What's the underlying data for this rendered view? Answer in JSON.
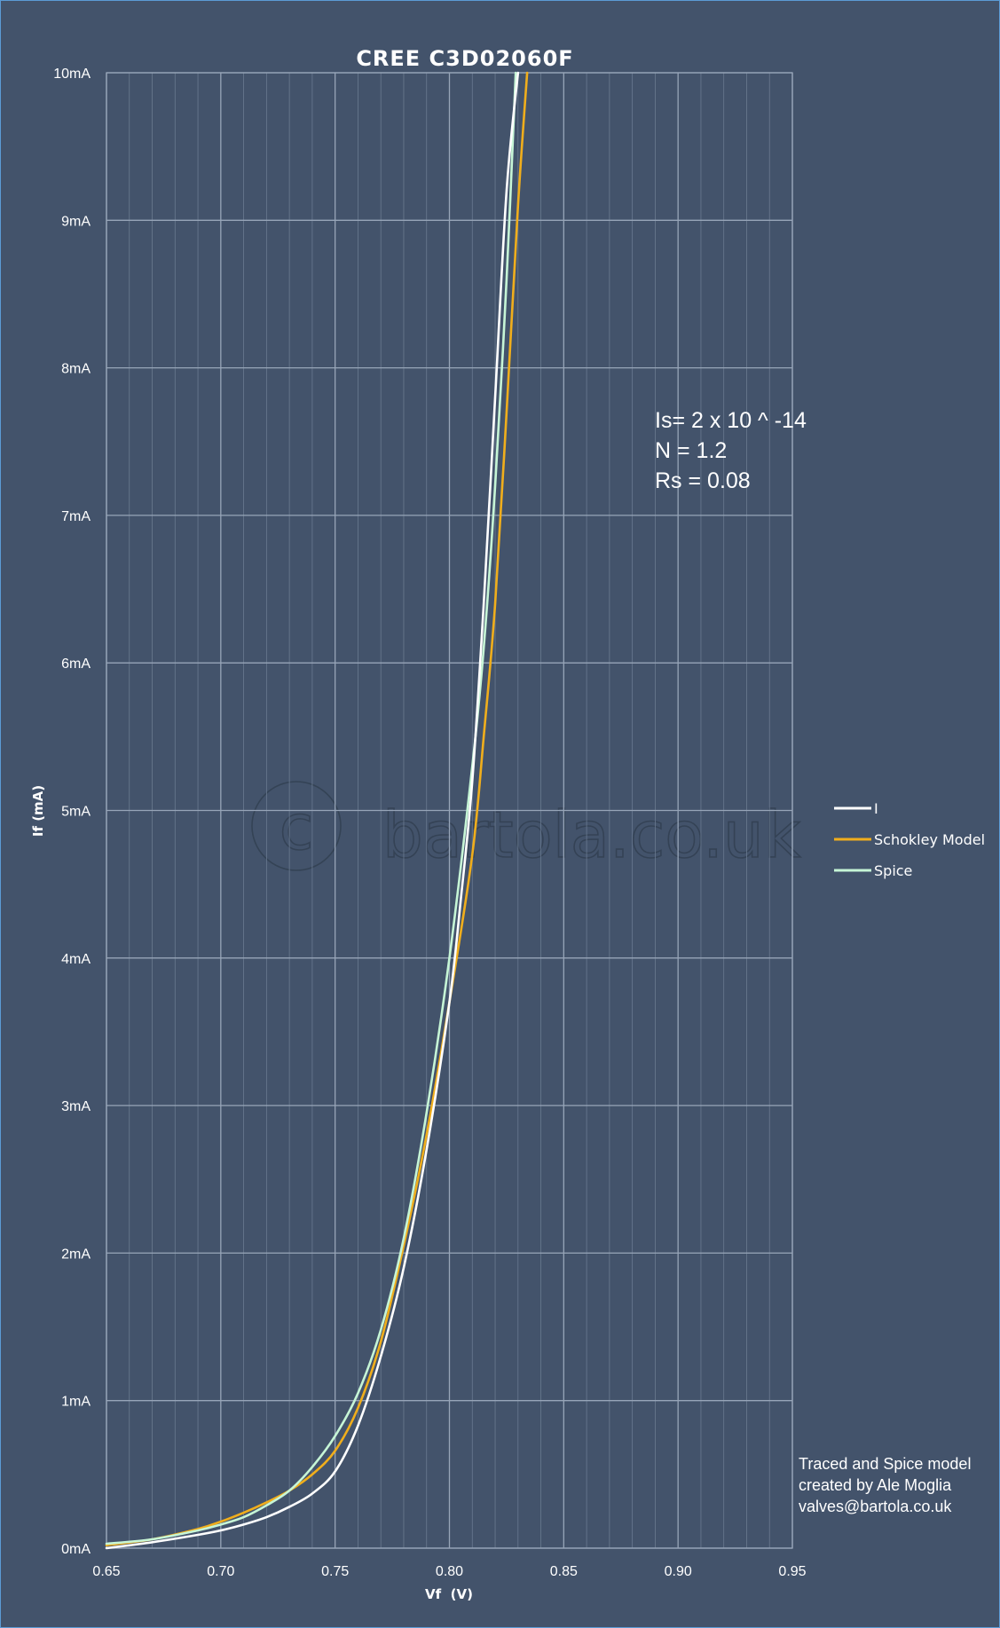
{
  "chart_data": {
    "type": "line",
    "title": "CREE C3D02060F",
    "xlabel": "Vf  (V)",
    "ylabel": "If (mA)",
    "xlim": [
      0.65,
      0.95
    ],
    "ylim": [
      0,
      10
    ],
    "x_ticks": [
      "0.65",
      "0.70",
      "0.75",
      "0.80",
      "0.85",
      "0.90",
      "0.95"
    ],
    "y_ticks": [
      "0mA",
      "1mA",
      "2mA",
      "3mA",
      "4mA",
      "5mA",
      "6mA",
      "7mA",
      "8mA",
      "9mA",
      "10mA"
    ],
    "grid": true,
    "legend_position": "right",
    "series": [
      {
        "name": "I",
        "color": "#ffffff",
        "x": [
          0.65,
          0.67,
          0.69,
          0.7,
          0.71,
          0.72,
          0.73,
          0.74,
          0.75,
          0.76,
          0.77,
          0.78,
          0.79,
          0.8,
          0.805,
          0.81,
          0.815,
          0.82,
          0.825,
          0.83
        ],
        "y": [
          0.0,
          0.04,
          0.09,
          0.12,
          0.16,
          0.21,
          0.28,
          0.37,
          0.52,
          0.83,
          1.3,
          1.9,
          2.7,
          3.7,
          4.4,
          5.2,
          6.4,
          7.8,
          9.2,
          10.0
        ]
      },
      {
        "name": "Schokley Model",
        "color": "#f0ae1c",
        "x": [
          0.65,
          0.67,
          0.69,
          0.7,
          0.71,
          0.72,
          0.73,
          0.74,
          0.75,
          0.76,
          0.77,
          0.78,
          0.79,
          0.8,
          0.81,
          0.815,
          0.82,
          0.825,
          0.83,
          0.834
        ],
        "y": [
          0.02,
          0.06,
          0.13,
          0.18,
          0.24,
          0.31,
          0.39,
          0.5,
          0.66,
          0.95,
          1.4,
          2.05,
          2.8,
          3.7,
          4.7,
          5.5,
          6.4,
          7.7,
          9.1,
          10.0
        ]
      },
      {
        "name": "Spice",
        "color": "#c6f5d6",
        "x": [
          0.65,
          0.67,
          0.69,
          0.7,
          0.71,
          0.72,
          0.73,
          0.74,
          0.75,
          0.76,
          0.77,
          0.78,
          0.79,
          0.8,
          0.81,
          0.815,
          0.82,
          0.825,
          0.829
        ],
        "y": [
          0.03,
          0.06,
          0.12,
          0.16,
          0.21,
          0.29,
          0.39,
          0.55,
          0.76,
          1.05,
          1.48,
          2.1,
          2.95,
          4.0,
          5.3,
          6.1,
          7.2,
          8.6,
          10.0
        ]
      }
    ],
    "annotations": [
      "Is= 2 x 10 ^ -14",
      "N = 1.2",
      "Rs = 0.08"
    ]
  },
  "credit": [
    "Traced and Spice model",
    "created by Ale Moglia",
    "valves@bartola.co.uk"
  ],
  "watermark": "bartola.co.uk"
}
